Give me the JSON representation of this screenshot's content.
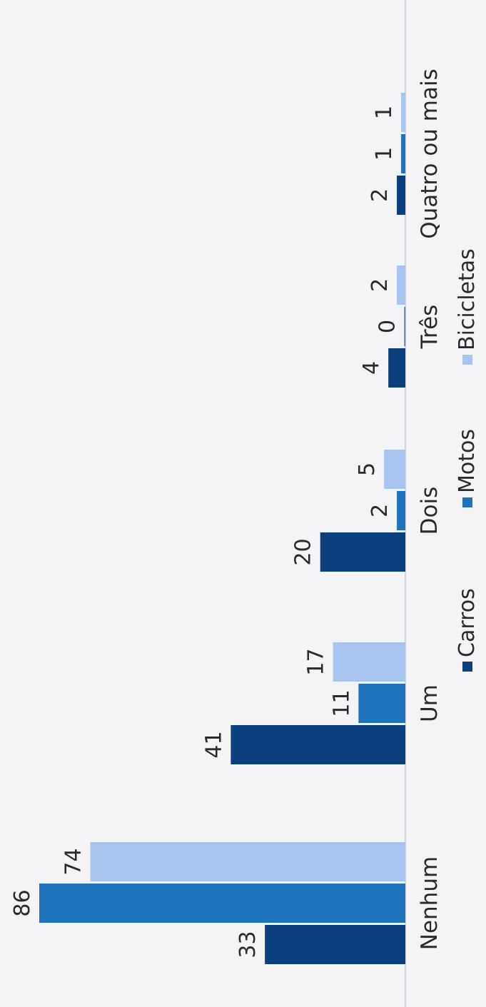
{
  "chart_data": {
    "type": "bar",
    "orientation": "vertical",
    "categories": [
      "Nenhum",
      "Um",
      "Dois",
      "Três",
      "Quatro ou mais"
    ],
    "series": [
      {
        "name": "Carros",
        "values": [
          33,
          41,
          20,
          4,
          2
        ],
        "color": "#0b3f7e"
      },
      {
        "name": "Motos",
        "values": [
          86,
          11,
          2,
          0,
          1
        ],
        "color": "#1f73bd"
      },
      {
        "name": "Bicicletas",
        "values": [
          74,
          17,
          5,
          2,
          1
        ],
        "color": "#a9c4ef"
      }
    ],
    "ylim": [
      0,
      86
    ],
    "grid": false,
    "legend_position": "bottom",
    "data_labels": true
  }
}
